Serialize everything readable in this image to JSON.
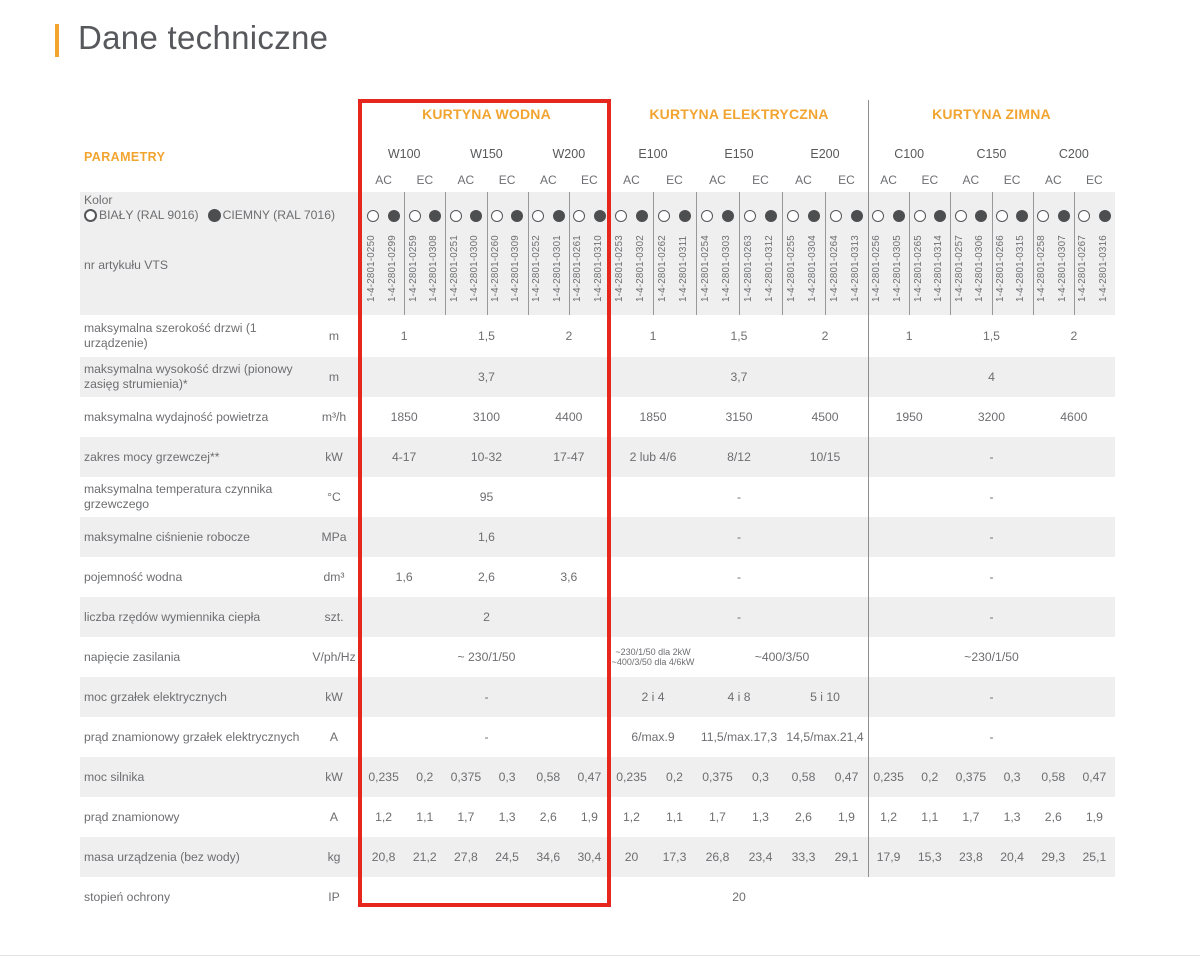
{
  "page": {
    "title": "Dane techniczne"
  },
  "colors": {
    "accent_orange": "#F2A431",
    "highlight_red": "#E5271E",
    "title_text": "#57585C",
    "body_text": "#6D6E71",
    "row_stripe": "#EFEFEF",
    "divider_line": "#8E8F91",
    "dot_dark": "#4D4E50"
  },
  "table": {
    "parameters_header": "PARAMETRY",
    "column_headers": {
      "ac": "AC",
      "ec": "EC"
    },
    "groups": [
      {
        "title": "KURTYNA WODNA",
        "models": [
          "W100",
          "W150",
          "W200"
        ],
        "highlighted": true
      },
      {
        "title": "KURTYNA ELEKTRYCZNA",
        "models": [
          "E100",
          "E150",
          "E200"
        ],
        "highlighted": false
      },
      {
        "title": "KURTYNA ZIMNA",
        "models": [
          "C100",
          "C150",
          "C200"
        ],
        "highlighted": false
      }
    ],
    "color_row": {
      "label": "Kolor",
      "legend_white": "BIAŁY (RAL 9016)",
      "legend_dark": "CIEMNY (RAL 7016)"
    },
    "article_row": {
      "label": "nr artykułu VTS",
      "numbers": [
        [
          "1-4-2801-0250",
          "1-4-2801-0299",
          "1-4-2801-0259",
          "1-4-2801-0308",
          "1-4-2801-0251",
          "1-4-2801-0300",
          "1-4-2801-0260",
          "1-4-2801-0309",
          "1-4-2801-0252",
          "1-4-2801-0301",
          "1-4-2801-0261",
          "1-4-2801-0310"
        ],
        [
          "1-4-2801-0253",
          "1-4-2801-0302",
          "1-4-2801-0262",
          "1-4-2801-0311",
          "1-4-2801-0254",
          "1-4-2801-0303",
          "1-4-2801-0263",
          "1-4-2801-0312",
          "1-4-2801-0255",
          "1-4-2801-0304",
          "1-4-2801-0264",
          "1-4-2801-0313"
        ],
        [
          "1-4-2801-0256",
          "1-4-2801-0305",
          "1-4-2801-0265",
          "1-4-2801-0314",
          "1-4-2801-0257",
          "1-4-2801-0306",
          "1-4-2801-0266",
          "1-4-2801-0315",
          "1-4-2801-0258",
          "1-4-2801-0307",
          "1-4-2801-0267",
          "1-4-2801-0316"
        ]
      ]
    },
    "rows": [
      {
        "label": "maksymalna szerokość drzwi (1 urządzenie)",
        "unit": "m",
        "cells": [
          {
            "g": 0,
            "t": "model",
            "i": 0,
            "v": "1"
          },
          {
            "g": 0,
            "t": "model",
            "i": 1,
            "v": "1,5"
          },
          {
            "g": 0,
            "t": "model",
            "i": 2,
            "v": "2"
          },
          {
            "g": 1,
            "t": "model",
            "i": 0,
            "v": "1"
          },
          {
            "g": 1,
            "t": "model",
            "i": 1,
            "v": "1,5"
          },
          {
            "g": 1,
            "t": "model",
            "i": 2,
            "v": "2"
          },
          {
            "g": 2,
            "t": "model",
            "i": 0,
            "v": "1"
          },
          {
            "g": 2,
            "t": "model",
            "i": 1,
            "v": "1,5"
          },
          {
            "g": 2,
            "t": "model",
            "i": 2,
            "v": "2"
          }
        ]
      },
      {
        "label": "maksymalna wysokość drzwi (pionowy zasięg strumienia)*",
        "unit": "m",
        "cells": [
          {
            "g": 0,
            "t": "group",
            "v": "3,7"
          },
          {
            "g": 1,
            "t": "group",
            "v": "3,7"
          },
          {
            "g": 2,
            "t": "group",
            "v": "4"
          }
        ]
      },
      {
        "label": "maksymalna wydajność powietrza",
        "unit": "m³/h",
        "cells": [
          {
            "g": 0,
            "t": "model",
            "i": 0,
            "v": "1850"
          },
          {
            "g": 0,
            "t": "model",
            "i": 1,
            "v": "3100"
          },
          {
            "g": 0,
            "t": "model",
            "i": 2,
            "v": "4400"
          },
          {
            "g": 1,
            "t": "model",
            "i": 0,
            "v": "1850"
          },
          {
            "g": 1,
            "t": "model",
            "i": 1,
            "v": "3150"
          },
          {
            "g": 1,
            "t": "model",
            "i": 2,
            "v": "4500"
          },
          {
            "g": 2,
            "t": "model",
            "i": 0,
            "v": "1950"
          },
          {
            "g": 2,
            "t": "model",
            "i": 1,
            "v": "3200"
          },
          {
            "g": 2,
            "t": "model",
            "i": 2,
            "v": "4600"
          }
        ]
      },
      {
        "label": "zakres mocy grzewczej**",
        "unit": "kW",
        "cells": [
          {
            "g": 0,
            "t": "model",
            "i": 0,
            "v": "4-17"
          },
          {
            "g": 0,
            "t": "model",
            "i": 1,
            "v": "10-32"
          },
          {
            "g": 0,
            "t": "model",
            "i": 2,
            "v": "17-47"
          },
          {
            "g": 1,
            "t": "model",
            "i": 0,
            "v": "2 lub 4/6"
          },
          {
            "g": 1,
            "t": "model",
            "i": 1,
            "v": "8/12"
          },
          {
            "g": 1,
            "t": "model",
            "i": 2,
            "v": "10/15"
          },
          {
            "g": 2,
            "t": "group",
            "v": "-"
          }
        ]
      },
      {
        "label": "maksymalna temperatura czynnika grzewczego",
        "unit": "°C",
        "cells": [
          {
            "g": 0,
            "t": "group",
            "v": "95"
          },
          {
            "g": 1,
            "t": "group",
            "v": "-"
          },
          {
            "g": 2,
            "t": "group",
            "v": "-"
          }
        ]
      },
      {
        "label": "maksymalne ciśnienie robocze",
        "unit": "MPa",
        "cells": [
          {
            "g": 0,
            "t": "group",
            "v": "1,6"
          },
          {
            "g": 1,
            "t": "group",
            "v": "-"
          },
          {
            "g": 2,
            "t": "group",
            "v": "-"
          }
        ]
      },
      {
        "label": "pojemność wodna",
        "unit": "dm³",
        "cells": [
          {
            "g": 0,
            "t": "model",
            "i": 0,
            "v": "1,6"
          },
          {
            "g": 0,
            "t": "model",
            "i": 1,
            "v": "2,6"
          },
          {
            "g": 0,
            "t": "model",
            "i": 2,
            "v": "3,6"
          },
          {
            "g": 1,
            "t": "group",
            "v": "-"
          },
          {
            "g": 2,
            "t": "group",
            "v": "-"
          }
        ]
      },
      {
        "label": "liczba rzędów wymiennika ciepła",
        "unit": "szt.",
        "cells": [
          {
            "g": 0,
            "t": "group",
            "v": "2"
          },
          {
            "g": 1,
            "t": "group",
            "v": "-"
          },
          {
            "g": 2,
            "t": "group",
            "v": "-"
          }
        ]
      },
      {
        "label": "napięcie zasilania",
        "unit": "V/ph/Hz",
        "cells": [
          {
            "g": 0,
            "t": "group",
            "v": "~ 230/1/50"
          },
          {
            "g": 1,
            "t": "model",
            "i": 0,
            "small": true,
            "v": [
              "~230/1/50 dla 2kW",
              "~400/3/50 dla 4/6kW"
            ]
          },
          {
            "g": 1,
            "t": "mspan",
            "i": 1,
            "n": 2,
            "v": "~400/3/50"
          },
          {
            "g": 2,
            "t": "group",
            "v": "~230/1/50"
          }
        ]
      },
      {
        "label": "moc grzałek elektrycznych",
        "unit": "kW",
        "cells": [
          {
            "g": 0,
            "t": "group",
            "v": "-"
          },
          {
            "g": 1,
            "t": "model",
            "i": 0,
            "v": "2 i 4"
          },
          {
            "g": 1,
            "t": "model",
            "i": 1,
            "v": "4 i 8"
          },
          {
            "g": 1,
            "t": "model",
            "i": 2,
            "v": "5 i 10"
          },
          {
            "g": 2,
            "t": "group",
            "v": "-"
          }
        ]
      },
      {
        "label": "prąd znamionowy grzałek elektrycznych",
        "unit": "A",
        "cells": [
          {
            "g": 0,
            "t": "group",
            "v": "-"
          },
          {
            "g": 1,
            "t": "model",
            "i": 0,
            "v": "6/max.9"
          },
          {
            "g": 1,
            "t": "model",
            "i": 1,
            "v": "11,5/max.17,3"
          },
          {
            "g": 1,
            "t": "model",
            "i": 2,
            "v": "14,5/max.21,4"
          },
          {
            "g": 2,
            "t": "group",
            "v": "-"
          }
        ]
      },
      {
        "label": "moc silnika",
        "unit": "kW",
        "cells": [
          {
            "g": 0,
            "t": "cols",
            "v": [
              "0,235",
              "0,2",
              "0,375",
              "0,3",
              "0,58",
              "0,47"
            ]
          },
          {
            "g": 1,
            "t": "cols",
            "v": [
              "0,235",
              "0,2",
              "0,375",
              "0,3",
              "0,58",
              "0,47"
            ]
          },
          {
            "g": 2,
            "t": "cols",
            "v": [
              "0,235",
              "0,2",
              "0,375",
              "0,3",
              "0,58",
              "0,47"
            ]
          }
        ]
      },
      {
        "label": "prąd znamionowy",
        "unit": "A",
        "cells": [
          {
            "g": 0,
            "t": "cols",
            "v": [
              "1,2",
              "1,1",
              "1,7",
              "1,3",
              "2,6",
              "1,9"
            ]
          },
          {
            "g": 1,
            "t": "cols",
            "v": [
              "1,2",
              "1,1",
              "1,7",
              "1,3",
              "2,6",
              "1,9"
            ]
          },
          {
            "g": 2,
            "t": "cols",
            "v": [
              "1,2",
              "1,1",
              "1,7",
              "1,3",
              "2,6",
              "1,9"
            ]
          }
        ]
      },
      {
        "label": "masa urządzenia (bez wody)",
        "unit": "kg",
        "cells": [
          {
            "g": 0,
            "t": "cols",
            "v": [
              "20,8",
              "21,2",
              "27,8",
              "24,5",
              "34,6",
              "30,4"
            ]
          },
          {
            "g": 1,
            "t": "cols",
            "v": [
              "20",
              "17,3",
              "26,8",
              "23,4",
              "33,3",
              "29,1"
            ]
          },
          {
            "g": 2,
            "t": "cols",
            "v": [
              "17,9",
              "15,3",
              "23,8",
              "20,4",
              "29,3",
              "25,1"
            ]
          }
        ]
      },
      {
        "label": "stopień ochrony",
        "unit": "IP",
        "cells": [
          {
            "g": 0,
            "t": "all",
            "v": "20"
          }
        ]
      }
    ]
  }
}
